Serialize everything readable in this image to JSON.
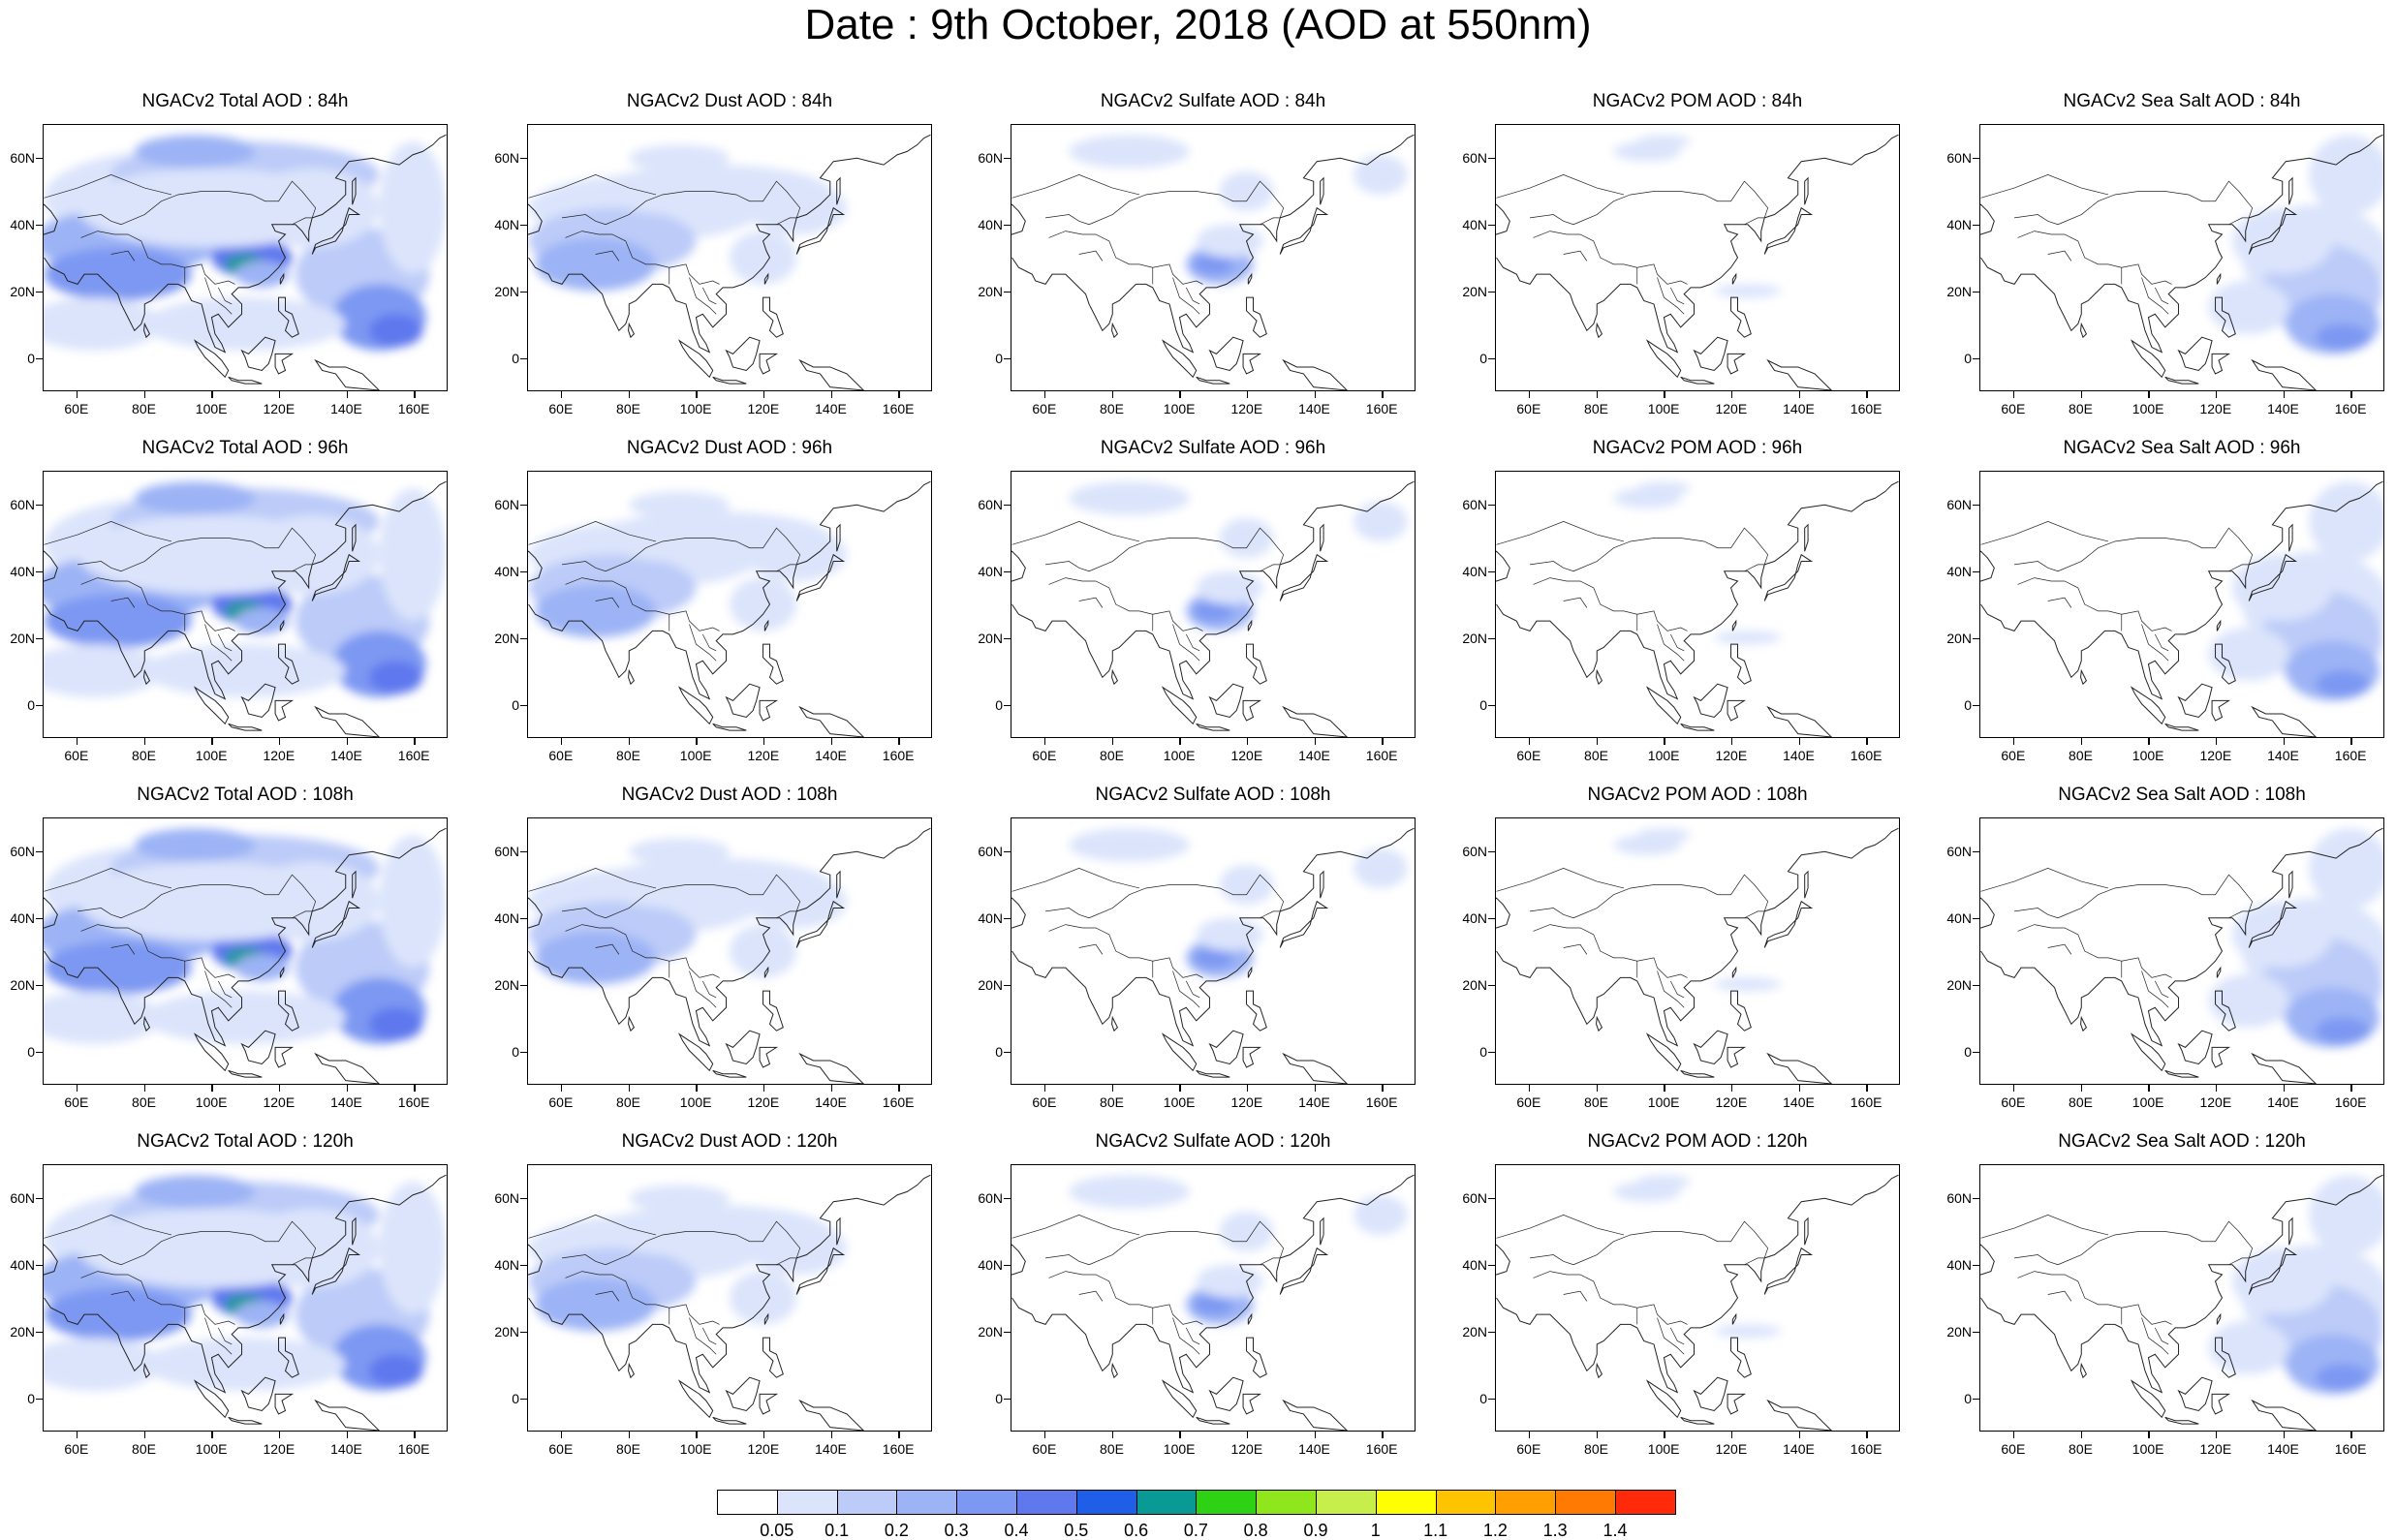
{
  "title": "Date : 9th October, 2018 (AOD at 550nm)",
  "x_ticks": [
    "60E",
    "80E",
    "100E",
    "120E",
    "140E",
    "160E"
  ],
  "y_ticks": [
    "60N",
    "40N",
    "20N",
    "0"
  ],
  "x_tick_values": [
    60,
    80,
    100,
    120,
    140,
    160
  ],
  "y_tick_values": [
    60,
    40,
    20,
    0
  ],
  "lon_range": [
    50,
    170
  ],
  "lat_range": [
    -10,
    70
  ],
  "panels": [
    {
      "title": "NGACv2 Total AOD : 84h",
      "species": "total"
    },
    {
      "title": "NGACv2 Dust AOD : 84h",
      "species": "dust"
    },
    {
      "title": "NGACv2 Sulfate AOD : 84h",
      "species": "sulfate"
    },
    {
      "title": "NGACv2 POM AOD : 84h",
      "species": "pom"
    },
    {
      "title": "NGACv2 Sea Salt AOD : 84h",
      "species": "seasalt"
    },
    {
      "title": "NGACv2 Total AOD : 96h",
      "species": "total"
    },
    {
      "title": "NGACv2 Dust AOD : 96h",
      "species": "dust"
    },
    {
      "title": "NGACv2 Sulfate AOD : 96h",
      "species": "sulfate"
    },
    {
      "title": "NGACv2 POM AOD : 96h",
      "species": "pom"
    },
    {
      "title": "NGACv2 Sea Salt AOD : 96h",
      "species": "seasalt"
    },
    {
      "title": "NGACv2 Total AOD : 108h",
      "species": "total"
    },
    {
      "title": "NGACv2 Dust AOD : 108h",
      "species": "dust"
    },
    {
      "title": "NGACv2 Sulfate AOD : 108h",
      "species": "sulfate"
    },
    {
      "title": "NGACv2 POM AOD : 108h",
      "species": "pom"
    },
    {
      "title": "NGACv2 Sea Salt AOD : 108h",
      "species": "seasalt"
    },
    {
      "title": "NGACv2 Total AOD : 120h",
      "species": "total"
    },
    {
      "title": "NGACv2 Dust AOD : 120h",
      "species": "dust"
    },
    {
      "title": "NGACv2 Sulfate AOD : 120h",
      "species": "sulfate"
    },
    {
      "title": "NGACv2 POM AOD : 120h",
      "species": "pom"
    },
    {
      "title": "NGACv2 Sea Salt  AOD : 120h",
      "species": "seasalt"
    }
  ],
  "colorbar": {
    "labels": [
      "0.05",
      "0.1",
      "0.2",
      "0.3",
      "0.4",
      "0.5",
      "0.6",
      "0.7",
      "0.8",
      "0.9",
      "1",
      "1.1",
      "1.2",
      "1.3",
      "1.4"
    ],
    "colors": [
      "#ffffff",
      "#dbe4fb",
      "#bccbf8",
      "#9cb3f5",
      "#7d98f2",
      "#5f78ee",
      "#1f5fe8",
      "#0a9a95",
      "#2fd114",
      "#8fe61c",
      "#c7ee4a",
      "#ffff00",
      "#ffc400",
      "#ffa000",
      "#ff7a00",
      "#ff2a0a"
    ]
  }
}
